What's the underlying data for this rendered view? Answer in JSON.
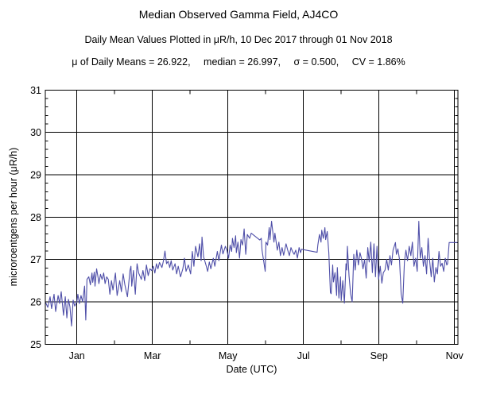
{
  "header": {
    "title": "Median Observed Gamma Field, AJ4CO",
    "subtitle": "Daily Mean Values Plotted in μR/h, 10 Dec 2017 through 01 Nov 2018",
    "stats_parts": [
      "μ of Daily Means = 26.922,",
      "median = 26.997,",
      "σ = 0.500,",
      "CV = 1.86%"
    ]
  },
  "chart_data": {
    "type": "line",
    "title": "Median Observed Gamma Field, AJ4CO",
    "xlabel": "Date (UTC)",
    "ylabel": "microroentgens per hour (μR/h)",
    "x_unit": "days since 10 Dec 2017",
    "ylim": [
      25,
      31
    ],
    "grid": true,
    "legend": "none",
    "line_color": "#4e4ea8",
    "y_major_ticks": [
      25,
      26,
      27,
      28,
      29,
      30,
      31
    ],
    "y_minor_step": 0.2,
    "x_major_ticks": [
      {
        "label": "Jan",
        "day": 22
      },
      {
        "label": "Mar",
        "day": 81
      },
      {
        "label": "May",
        "day": 142
      },
      {
        "label": "Jul",
        "day": 203
      },
      {
        "label": "Sep",
        "day": 265
      },
      {
        "label": "Nov",
        "day": 326
      }
    ],
    "x_minor_tick_days": [
      53,
      112,
      173,
      234,
      295
    ],
    "points": [
      [
        0,
        26.0
      ],
      [
        1.7,
        25.87
      ],
      [
        3.3,
        26.12
      ],
      [
        4.4,
        25.84
      ],
      [
        6.1,
        26.18
      ],
      [
        7.2,
        25.77
      ],
      [
        8.9,
        26.15
      ],
      [
        10,
        25.96
      ],
      [
        11.1,
        26.24
      ],
      [
        12.7,
        25.68
      ],
      [
        13.9,
        26.12
      ],
      [
        15,
        25.62
      ],
      [
        16.1,
        26.06
      ],
      [
        17.2,
        25.88
      ],
      [
        18.3,
        25.43
      ],
      [
        19.4,
        26.04
      ],
      [
        20.5,
        25.9
      ],
      [
        22,
        26.0
      ],
      [
        22.8,
        26.18
      ],
      [
        24.1,
        25.96
      ],
      [
        25.4,
        26.15
      ],
      [
        26.7,
        26.0
      ],
      [
        28.3,
        26.37
      ],
      [
        29.3,
        25.57
      ],
      [
        30.3,
        26.53
      ],
      [
        31.8,
        26.59
      ],
      [
        33.1,
        26.4
      ],
      [
        34.4,
        26.68
      ],
      [
        35,
        26.46
      ],
      [
        36.3,
        26.7
      ],
      [
        36.9,
        26.37
      ],
      [
        38.2,
        26.78
      ],
      [
        39.5,
        26.56
      ],
      [
        40.1,
        26.43
      ],
      [
        41.4,
        26.65
      ],
      [
        42.7,
        26.53
      ],
      [
        44,
        26.68
      ],
      [
        45.2,
        26.43
      ],
      [
        46.5,
        26.59
      ],
      [
        47.8,
        26.53
      ],
      [
        49.1,
        26.18
      ],
      [
        50.4,
        26.5
      ],
      [
        51.6,
        26.28
      ],
      [
        53.6,
        26.68
      ],
      [
        54.8,
        26.15
      ],
      [
        56.8,
        26.5
      ],
      [
        58,
        26.24
      ],
      [
        59.3,
        26.66
      ],
      [
        60.6,
        26.4
      ],
      [
        62.5,
        26.12
      ],
      [
        64.4,
        26.74
      ],
      [
        65.1,
        26.84
      ],
      [
        65.7,
        26.37
      ],
      [
        67,
        26.74
      ],
      [
        68.3,
        26.18
      ],
      [
        69.6,
        26.9
      ],
      [
        70.8,
        26.68
      ],
      [
        72.8,
        26.53
      ],
      [
        74,
        26.74
      ],
      [
        75.3,
        26.5
      ],
      [
        76.6,
        26.87
      ],
      [
        77.9,
        26.62
      ],
      [
        79.2,
        26.78
      ],
      [
        80.4,
        26.74
      ],
      [
        81.7,
        26.84
      ],
      [
        83,
        26.68
      ],
      [
        84.3,
        26.9
      ],
      [
        85.6,
        26.78
      ],
      [
        86.8,
        26.93
      ],
      [
        88.8,
        26.81
      ],
      [
        90,
        26.96
      ],
      [
        91.3,
        27.2
      ],
      [
        92.6,
        26.9
      ],
      [
        93.9,
        26.96
      ],
      [
        95.2,
        26.81
      ],
      [
        96.4,
        26.97
      ],
      [
        97.7,
        26.75
      ],
      [
        99.6,
        26.9
      ],
      [
        100.9,
        26.66
      ],
      [
        102.2,
        26.84
      ],
      [
        104.1,
        26.59
      ],
      [
        106,
        26.78
      ],
      [
        107.3,
        27.03
      ],
      [
        108.6,
        26.72
      ],
      [
        110.5,
        26.87
      ],
      [
        112.4,
        26.66
      ],
      [
        113.7,
        27.19
      ],
      [
        115,
        26.84
      ],
      [
        116.3,
        27.31
      ],
      [
        118.2,
        27.06
      ],
      [
        119.5,
        27.37
      ],
      [
        120.7,
        26.97
      ],
      [
        121.4,
        27.53
      ],
      [
        122.7,
        27.06
      ],
      [
        124.6,
        26.87
      ],
      [
        125.9,
        26.72
      ],
      [
        127.2,
        26.94
      ],
      [
        128.4,
        26.78
      ],
      [
        130.4,
        27.03
      ],
      [
        131.6,
        26.84
      ],
      [
        133.6,
        27.19
      ],
      [
        134.8,
        26.97
      ],
      [
        136.8,
        27.34
      ],
      [
        138,
        27.13
      ],
      [
        140,
        27.31
      ],
      [
        141.2,
        27.22
      ],
      [
        142.5,
        27.03
      ],
      [
        143.8,
        27.34
      ],
      [
        145.1,
        27.19
      ],
      [
        145.7,
        27.5
      ],
      [
        147,
        27.28
      ],
      [
        148.3,
        27.56
      ],
      [
        148.9,
        27.16
      ],
      [
        150.2,
        27.41
      ],
      [
        151.5,
        27.03
      ],
      [
        152.7,
        27.47
      ],
      [
        154,
        27.34
      ],
      [
        155.3,
        27.72
      ],
      [
        156.6,
        27.12
      ],
      [
        157.9,
        27.59
      ],
      [
        159.8,
        27.5
      ],
      [
        161.1,
        27.62
      ],
      [
        168.1,
        27.46
      ],
      [
        169.4,
        27.5
      ],
      [
        170,
        27.22
      ],
      [
        171.3,
        26.97
      ],
      [
        172.6,
        26.72
      ],
      [
        173.2,
        27.41
      ],
      [
        174.5,
        27.34
      ],
      [
        175.8,
        27.75
      ],
      [
        176.4,
        27.47
      ],
      [
        177.7,
        27.9
      ],
      [
        179.6,
        27.41
      ],
      [
        180.3,
        27.62
      ],
      [
        182.2,
        27.22
      ],
      [
        183.5,
        27.41
      ],
      [
        184.7,
        27.09
      ],
      [
        186,
        27.28
      ],
      [
        187.3,
        27.1
      ],
      [
        189.2,
        27.37
      ],
      [
        190.5,
        27.22
      ],
      [
        191.8,
        27.09
      ],
      [
        193.1,
        27.28
      ],
      [
        194.3,
        27.19
      ],
      [
        195.6,
        27.12
      ],
      [
        196.9,
        27.22
      ],
      [
        198.2,
        27.03
      ],
      [
        199.5,
        27.28
      ],
      [
        200.7,
        27.16
      ],
      [
        201.4,
        27.24
      ],
      [
        214.2,
        27.17
      ],
      [
        214.8,
        27.34
      ],
      [
        216.1,
        27.59
      ],
      [
        217.4,
        27.41
      ],
      [
        218,
        27.69
      ],
      [
        219.3,
        27.5
      ],
      [
        220.6,
        27.75
      ],
      [
        221.2,
        27.47
      ],
      [
        222.5,
        27.66
      ],
      [
        223.8,
        27.16
      ],
      [
        225.1,
        26.22
      ],
      [
        225.7,
        26.19
      ],
      [
        227,
        26.87
      ],
      [
        227.6,
        26.47
      ],
      [
        228.9,
        26.69
      ],
      [
        230.2,
        26.15
      ],
      [
        230.8,
        26.81
      ],
      [
        232.1,
        26.09
      ],
      [
        233.4,
        26.59
      ],
      [
        234,
        26.03
      ],
      [
        235.3,
        26.5
      ],
      [
        236.6,
        25.97
      ],
      [
        237.9,
        26.9
      ],
      [
        238.5,
        26.75
      ],
      [
        239.1,
        27.31
      ],
      [
        240.4,
        26.62
      ],
      [
        241.7,
        26.19
      ],
      [
        243,
        26.0
      ],
      [
        244.3,
        27.12
      ],
      [
        245.5,
        26.75
      ],
      [
        246.8,
        27.22
      ],
      [
        248.1,
        26.87
      ],
      [
        249.4,
        27.16
      ],
      [
        250.6,
        27.03
      ],
      [
        251.9,
        26.78
      ],
      [
        253.2,
        27.0
      ],
      [
        254.5,
        26.56
      ],
      [
        255.8,
        27.28
      ],
      [
        257,
        26.94
      ],
      [
        258.3,
        27.41
      ],
      [
        259.6,
        26.69
      ],
      [
        260.9,
        27.37
      ],
      [
        262.1,
        26.59
      ],
      [
        263.4,
        27.31
      ],
      [
        264.7,
        26.53
      ],
      [
        266,
        26.84
      ],
      [
        267.3,
        26.44
      ],
      [
        268.5,
        26.69
      ],
      [
        269.8,
        26.75
      ],
      [
        271.1,
        27.0
      ],
      [
        272.4,
        26.75
      ],
      [
        273.7,
        27.09
      ],
      [
        274.9,
        26.87
      ],
      [
        276.2,
        27.22
      ],
      [
        278.1,
        27.4
      ],
      [
        278.8,
        27.12
      ],
      [
        280,
        27.25
      ],
      [
        281.3,
        27.0
      ],
      [
        282.6,
        26.19
      ],
      [
        283.9,
        25.97
      ],
      [
        285.2,
        26.94
      ],
      [
        286.4,
        27.22
      ],
      [
        287.7,
        26.97
      ],
      [
        289,
        27.31
      ],
      [
        290.3,
        27.09
      ],
      [
        291.5,
        27.41
      ],
      [
        292.8,
        26.84
      ],
      [
        294.1,
        27.03
      ],
      [
        295.4,
        26.72
      ],
      [
        296.7,
        27.9
      ],
      [
        297.9,
        27.03
      ],
      [
        299.2,
        27.28
      ],
      [
        300.5,
        26.84
      ],
      [
        301.8,
        27.09
      ],
      [
        303.1,
        26.66
      ],
      [
        304.3,
        27.5
      ],
      [
        305.6,
        26.97
      ],
      [
        306.9,
        26.59
      ],
      [
        308.2,
        27.03
      ],
      [
        309.4,
        26.47
      ],
      [
        310.7,
        26.81
      ],
      [
        312,
        26.66
      ],
      [
        313.3,
        27.19
      ],
      [
        314.6,
        26.84
      ],
      [
        315.8,
        26.91
      ],
      [
        317.1,
        26.72
      ],
      [
        318.4,
        27.03
      ],
      [
        319.7,
        26.87
      ],
      [
        320.3,
        26.9
      ],
      [
        321.6,
        27.4
      ],
      [
        326,
        27.4
      ],
      [
        328,
        27.4
      ]
    ]
  }
}
